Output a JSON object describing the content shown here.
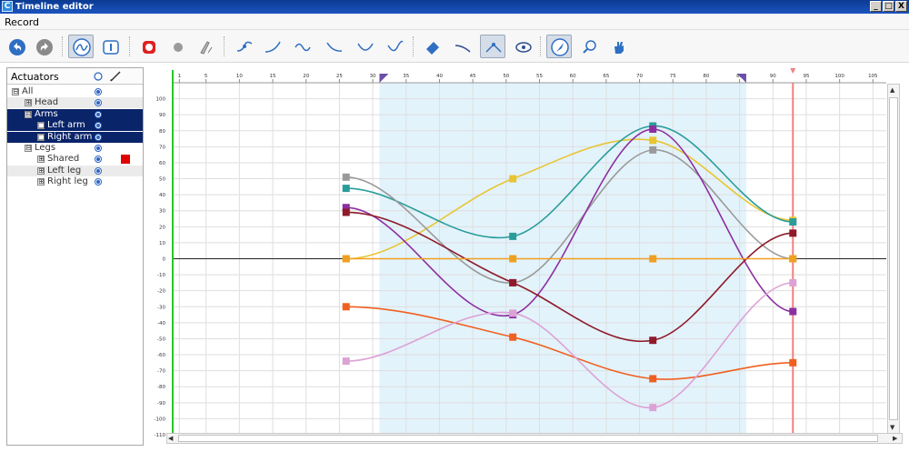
{
  "window": {
    "title": "Timeline editor",
    "app_icon": "C",
    "buttons": [
      "_",
      "□",
      "X"
    ]
  },
  "menu": {
    "items": [
      "Record"
    ]
  },
  "toolbar": {
    "icons": [
      "undo-icon",
      "redo-icon",
      "curve-view-icon",
      "info-icon",
      "record-icon",
      "dot-icon",
      "tools-icon",
      "add-point-icon",
      "ease-in-icon",
      "ease-sine-icon",
      "ease-out-icon",
      "ease-bounce-icon",
      "ease-inout-icon",
      "eraser-icon",
      "interpolate-icon",
      "smooth-icon",
      "visibility-icon",
      "pointer-icon",
      "search-icon",
      "hand-icon"
    ]
  },
  "panel": {
    "header": "Actuators",
    "tree": [
      {
        "label": "All",
        "level": 0,
        "expander": "⊟",
        "style": "plain"
      },
      {
        "label": "Head",
        "level": 1,
        "expander": "⊞",
        "style": "grey"
      },
      {
        "label": "Arms",
        "level": 1,
        "expander": "⊟",
        "style": "sel"
      },
      {
        "label": "Left arm",
        "level": 2,
        "expander": "□",
        "style": "sel"
      },
      {
        "label": "Right arm",
        "level": 2,
        "expander": "□",
        "style": "sel"
      },
      {
        "label": "Legs",
        "level": 1,
        "expander": "⊟",
        "style": "plain"
      },
      {
        "label": "Shared",
        "level": 2,
        "expander": "⊞",
        "style": "plain",
        "swatch": "#e00000"
      },
      {
        "label": "Left leg",
        "level": 2,
        "expander": "⊞",
        "style": "grey"
      },
      {
        "label": "Right leg",
        "level": 2,
        "expander": "⊞",
        "style": "plain"
      }
    ]
  },
  "chart_data": {
    "type": "line",
    "xlim": [
      0,
      107
    ],
    "ylim": [
      -110,
      110
    ],
    "x_ticks": [
      1,
      5,
      10,
      15,
      20,
      25,
      30,
      35,
      40,
      45,
      50,
      55,
      60,
      65,
      70,
      75,
      80,
      85,
      90,
      95,
      100,
      105
    ],
    "y_ticks": [
      100,
      90,
      80,
      70,
      60,
      50,
      40,
      30,
      20,
      10,
      0,
      -10,
      -20,
      -30,
      -40,
      -50,
      -60,
      -70,
      -80,
      -90,
      -100,
      -110
    ],
    "selection_range": [
      31,
      86
    ],
    "playhead_x": 93,
    "key_x": [
      26,
      51,
      72,
      93
    ],
    "series": [
      {
        "color": "#e8c530",
        "values": [
          0,
          50,
          74,
          24
        ]
      },
      {
        "color": "#2a9d9a",
        "values": [
          44,
          14,
          83,
          23
        ]
      },
      {
        "color": "#9a9a9a",
        "values": [
          51,
          -15,
          68,
          0
        ]
      },
      {
        "color": "#8b2fa0",
        "values": [
          32,
          -35,
          81,
          -33
        ]
      },
      {
        "color": "#8e1a2a",
        "values": [
          29,
          -15,
          -51,
          16
        ]
      },
      {
        "color": "#f0a020",
        "values": [
          0,
          0,
          0,
          0
        ]
      },
      {
        "color": "#f06020",
        "values": [
          -30,
          -49,
          -75,
          -65
        ]
      },
      {
        "color": "#dca2d6",
        "values": [
          -64,
          -34,
          -93,
          -15
        ]
      }
    ]
  }
}
